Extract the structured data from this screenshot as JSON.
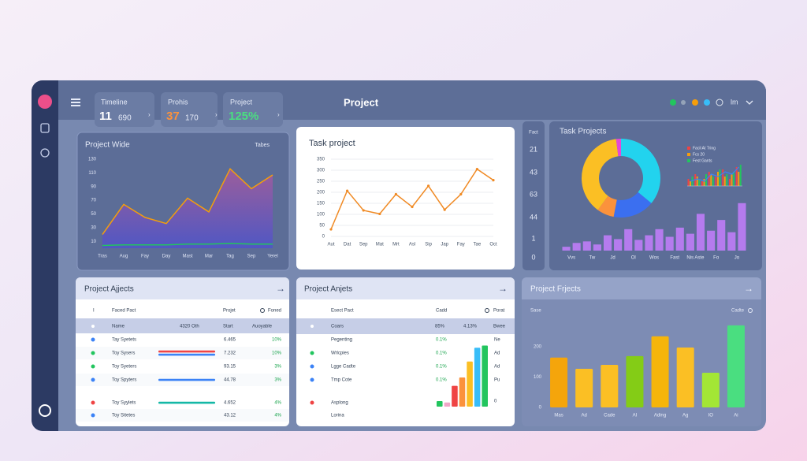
{
  "header": {
    "title": "Project",
    "cards": [
      {
        "label": "Timeline",
        "value": "11",
        "sub": "690"
      },
      {
        "label": "Prohis",
        "value": "37",
        "sub": "170"
      },
      {
        "label": "Project",
        "value": "125%"
      }
    ],
    "user": "lm"
  },
  "project_wide": {
    "type": "area",
    "title": "Project Wide",
    "button": "Tabes",
    "categories": [
      "Tras",
      "Aug",
      "Fay",
      "Day",
      "Mast",
      "Mar",
      "Tag",
      "Sep",
      "Yerel"
    ],
    "series": [
      {
        "color": "#f59e0b",
        "fill": "#7b5fc7",
        "values": [
          20,
          64,
          45,
          36,
          73,
          53,
          116,
          87,
          107
        ]
      },
      {
        "color": "#22c55e",
        "values": [
          4,
          5,
          5,
          5,
          6,
          6,
          7,
          6,
          6
        ]
      }
    ],
    "ylim": [
      0,
      130
    ],
    "yticks": [
      10,
      30,
      50,
      70,
      90,
      110,
      130
    ]
  },
  "task_project": {
    "type": "line",
    "title": "Task project",
    "categories": [
      "Aut",
      "Dat",
      "Sep",
      "Mat",
      "Mrt",
      "Asl",
      "Sip",
      "Jap",
      "Fay",
      "Tae",
      "Oct"
    ],
    "values": [
      32,
      207,
      118,
      102,
      191,
      134,
      229,
      121,
      191,
      305,
      255
    ],
    "color": "#f08a24",
    "ylim": [
      0,
      350
    ],
    "yticks": [
      0,
      50,
      100,
      150,
      200,
      250,
      300,
      350
    ],
    "grid": true
  },
  "fact": {
    "title": "Fact",
    "values": [
      21,
      43,
      63,
      44,
      1,
      0
    ]
  },
  "task_projects": {
    "title": "Task Projects",
    "donut": {
      "type": "pie",
      "values": [
        36,
        17,
        7,
        38,
        2
      ],
      "colors": [
        "#22d3ee",
        "#3b6ff0",
        "#fb923c",
        "#fbbf24",
        "#e449d6"
      ]
    },
    "mini": {
      "type": "bar",
      "series": [
        {
          "name": "Facil At Tring",
          "color": "#ef4444",
          "values": [
            3,
            5,
            2,
            6,
            4,
            7,
            3,
            8
          ]
        },
        {
          "name": "Fcs 20",
          "color": "#f59e0b",
          "values": [
            2,
            4,
            3,
            5,
            6,
            4,
            5,
            6
          ]
        },
        {
          "name": "Fest Gants",
          "color": "#22c55e",
          "values": [
            4,
            3,
            5,
            4,
            7,
            5,
            6,
            9
          ]
        }
      ],
      "line": {
        "color": "#3b82f6",
        "values": [
          2,
          3,
          2,
          5,
          4,
          6,
          5,
          8
        ]
      },
      "ylim": [
        0,
        10
      ]
    },
    "bars": {
      "type": "bar",
      "categories": [
        null,
        "Vvs",
        null,
        "Tw",
        null,
        "Jd",
        null,
        "Ol",
        null,
        "Wos",
        null,
        "Fast",
        null,
        "Nis Aste",
        null,
        "Fo",
        null,
        "Jo"
      ],
      "values": [
        5,
        10,
        12,
        8,
        20,
        15,
        28,
        14,
        20,
        28,
        18,
        30,
        22,
        48,
        26,
        40,
        24,
        62
      ],
      "color": "#b57bee",
      "ylim": [
        0,
        70
      ]
    }
  },
  "project_ajjects": {
    "title": "Project Ajjects",
    "columns": [
      "I",
      "Faced Pact",
      "Projet",
      "Foned"
    ],
    "subheader": [
      "Name",
      "4320 Oth",
      "Start",
      "Auoyable"
    ],
    "rows": [
      {
        "name": "Tay Syetets",
        "value": "6.465",
        "pct": "10%"
      },
      {
        "name": "Toy Sysers",
        "value": "7.232",
        "pct": "10%"
      },
      {
        "name": "Toy Syeters",
        "value": "93.15",
        "pct": "3%"
      },
      {
        "name": "Toy Spyters",
        "value": "44.78",
        "pct": "3%"
      },
      {
        "name": "Toy Syylets",
        "value": "4.652",
        "pct": "4%"
      },
      {
        "name": "Toy Sitetes",
        "value": "43.12",
        "pct": "4%"
      }
    ]
  },
  "project_anjets": {
    "title": "Project Anjets",
    "columns": [
      "Esect Pact",
      "Cadd",
      "Porat"
    ],
    "subheader": [
      "Coars",
      "85%",
      "4.13%",
      "Bwee"
    ],
    "rows": [
      {
        "name": "Pegenting",
        "pct": "0.1%"
      },
      {
        "name": "Wrlcpies",
        "pct": "0.1%"
      },
      {
        "name": "Lgge Cadte",
        "pct": "0.1%"
      },
      {
        "name": "Tmp Cote",
        "pct": "0.1%"
      },
      {
        "name": "Asplong"
      },
      {
        "name": "Lorina"
      }
    ],
    "side_labels": [
      "Ne",
      "Ad",
      "Ad",
      "Pu",
      "0"
    ],
    "bars": {
      "type": "bar",
      "values": [
        8,
        6,
        30,
        42,
        65,
        85,
        88
      ],
      "colors": [
        "#22c55e",
        "#f0a6c8",
        "#ef4444",
        "#fb923c",
        "#fbbf24",
        "#38bdf8",
        "#22c55e"
      ],
      "ylim": [
        0,
        100
      ]
    }
  },
  "project_frjects": {
    "type": "bar",
    "title": "Project Frjects",
    "left_label": "Sase",
    "right_label": "Cadte",
    "categories": [
      "Mas",
      "Ad",
      "Cade",
      "AI",
      "Ading",
      "Ag",
      "IO",
      "Ai"
    ],
    "values": [
      164,
      127,
      140,
      169,
      234,
      197,
      114,
      270
    ],
    "colors": [
      "#f5a50b",
      "#fbbf24",
      "#fbbf24",
      "#84cc16",
      "#f5b50b",
      "#fbbf24",
      "#a3e635",
      "#4ade80"
    ],
    "ylim": [
      0,
      280
    ],
    "yticks": [
      0,
      100,
      200
    ]
  }
}
